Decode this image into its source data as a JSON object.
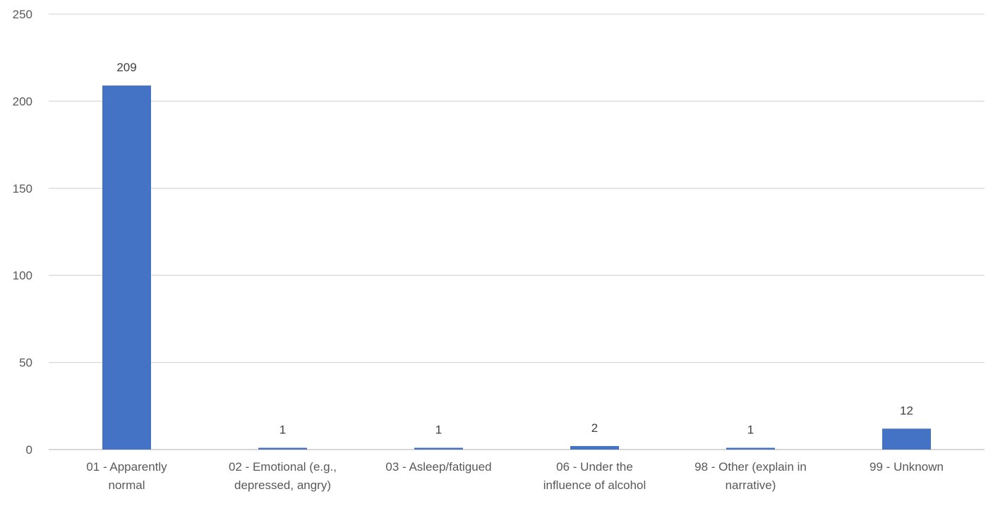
{
  "chart_data": {
    "type": "bar",
    "categories": [
      [
        "01 - Apparently",
        "normal"
      ],
      [
        "02 - Emotional (e.g.,",
        "depressed, angry)"
      ],
      [
        "03 - Asleep/fatigued"
      ],
      [
        "06 - Under the",
        "influence of alcohol"
      ],
      [
        "98 - Other (explain in",
        "narrative)"
      ],
      [
        "99 - Unknown"
      ]
    ],
    "values": [
      209,
      1,
      1,
      2,
      1,
      12
    ],
    "data_labels": [
      "209",
      "1",
      "1",
      "2",
      "1",
      "12"
    ],
    "ylim": [
      0,
      250
    ],
    "yticks": [
      0,
      50,
      100,
      150,
      200,
      250
    ],
    "ytick_labels": [
      "0",
      "50",
      "100",
      "150",
      "200",
      "250"
    ],
    "grid": true,
    "legend": "none",
    "colors": {
      "bar": "#4472C4",
      "grid": "#D9D9D9",
      "axis": "#BFBFBF"
    }
  }
}
